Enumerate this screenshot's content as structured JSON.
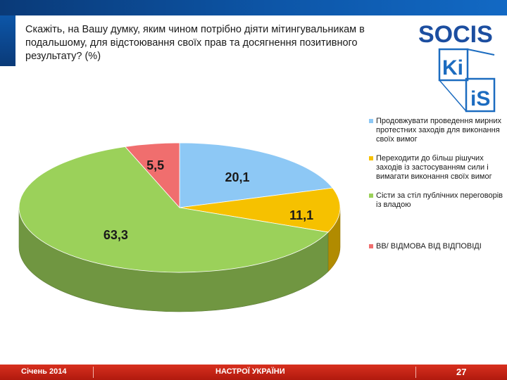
{
  "question": "Скажіть, на Вашу думку, яким чином потрібно діяти мітингувальникам в подальшому, для відстоювання своїх прав та досягнення позитивного результату? (%)",
  "logos": {
    "socis": "SOCIS",
    "kiis_top": "Ki",
    "kiis_bottom": "iS"
  },
  "chart_data": {
    "type": "pie",
    "title": "",
    "slices": [
      {
        "label": "Продовжувати проведення мирних протестних заходів для виконання своїх вимог",
        "value": 20.1,
        "display": "20,1",
        "color": "#8dc8f5"
      },
      {
        "label": "Переходити до більш рішучих заходів із застосуванням сили і вимагати виконання своїх вимог",
        "value": 11.1,
        "display": "11,1",
        "color": "#f6c100"
      },
      {
        "label": "Сісти за стіл публічних переговорів із владою",
        "value": 63.3,
        "display": "63,3",
        "color": "#9bd15a"
      },
      {
        "label": "ВВ/ ВІДМОВА ВІД ВІДПОВІДІ",
        "value": 5.5,
        "display": "5,5",
        "color": "#f06e6e"
      }
    ],
    "legend_position": "right"
  },
  "footer": {
    "date": "Січень 2014",
    "title": "НАСТРОЇ УКРАЇНИ",
    "page": "27"
  }
}
